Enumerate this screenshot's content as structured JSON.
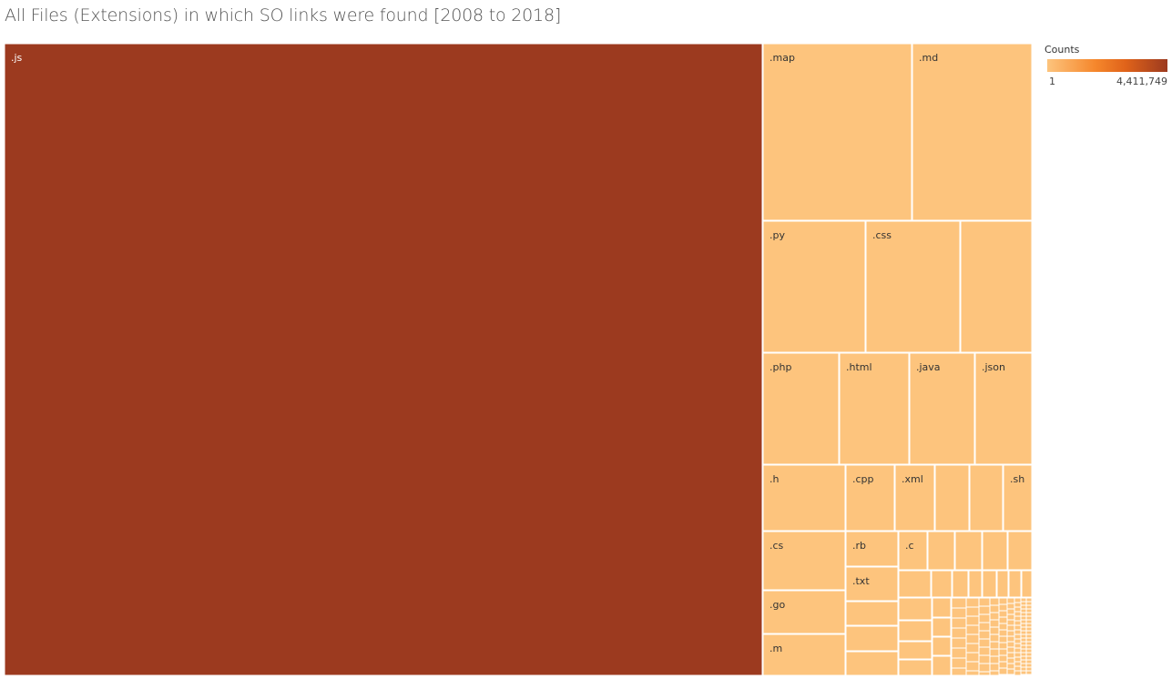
{
  "title": "All Files (Extensions) in which SO links were found [2008 to 2018]",
  "legend": {
    "title": "Counts",
    "min_label": "1",
    "max_label": "4,411,749",
    "colors": [
      "#fdc47d",
      "#f5872c",
      "#e0631a",
      "#9c3a1f"
    ]
  },
  "chart_data": {
    "type": "treemap",
    "color_scale_min": 1,
    "color_scale_max": 4411749,
    "labeled_items": [
      ".js",
      ".map",
      ".md",
      ".py",
      ".css",
      ".php",
      ".html",
      ".java",
      ".json",
      ".h",
      ".cpp",
      ".xml",
      ".sh",
      ".cs",
      ".rb",
      ".c",
      ".txt",
      ".go",
      ".m"
    ],
    "colors": {
      "high": "#9c3a1f",
      "low": "#fdc47d",
      "border": "#ffffff"
    }
  }
}
